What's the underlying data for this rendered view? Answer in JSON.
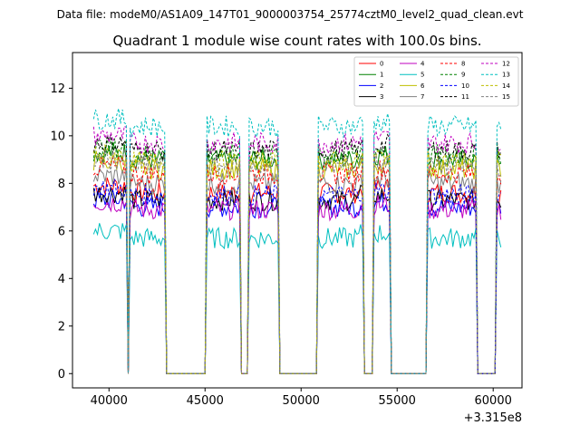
{
  "chart_data": {
    "type": "line",
    "suptitle": "Data file: modeM0/AS1A09_147T01_9000003754_25774cztM0_level2_quad_clean.evt",
    "title": "Quadrant 1 module wise count rates with 100.0s bins.",
    "xlabel": "",
    "ylabel": "",
    "x_offset_label": "+3.315e8",
    "xlim": [
      38100,
      61500
    ],
    "ylim": [
      -0.6,
      13.5
    ],
    "xticks": [
      40000,
      45000,
      50000,
      55000,
      60000
    ],
    "xtick_labels": [
      "40000",
      "45000",
      "50000",
      "55000",
      "60000"
    ],
    "yticks": [
      0,
      2,
      4,
      6,
      8,
      10,
      12
    ],
    "ytick_labels": [
      "0",
      "2",
      "4",
      "6",
      "8",
      "10",
      "12"
    ],
    "segments": [
      [
        39200,
        40900
      ],
      [
        41100,
        42900
      ],
      [
        45100,
        46800
      ],
      [
        47300,
        48800
      ],
      [
        50900,
        53200
      ],
      [
        53800,
        54600
      ],
      [
        56600,
        59100
      ],
      [
        60200,
        60400
      ]
    ],
    "legend_position": "upper right",
    "legend_ncol": 4,
    "series": [
      {
        "name": "0",
        "color": "#ff0000",
        "dash": "solid",
        "level": 7.6
      },
      {
        "name": "1",
        "color": "#008000",
        "dash": "solid",
        "level": 9.0
      },
      {
        "name": "2",
        "color": "#0000ff",
        "dash": "solid",
        "level": 7.0
      },
      {
        "name": "3",
        "color": "#000000",
        "dash": "solid",
        "level": 7.3
      },
      {
        "name": "4",
        "color": "#bf00bf",
        "dash": "solid",
        "level": 6.9
      },
      {
        "name": "5",
        "color": "#00bfbf",
        "dash": "solid",
        "level": 5.7
      },
      {
        "name": "6",
        "color": "#bfbf00",
        "dash": "solid",
        "level": 8.6
      },
      {
        "name": "7",
        "color": "#808080",
        "dash": "solid",
        "level": 8.0
      },
      {
        "name": "8",
        "color": "#ff0000",
        "dash": "dashed",
        "level": 8.4
      },
      {
        "name": "9",
        "color": "#008000",
        "dash": "dashed",
        "level": 9.2
      },
      {
        "name": "10",
        "color": "#0000ff",
        "dash": "dashed",
        "level": 7.5
      },
      {
        "name": "11",
        "color": "#000000",
        "dash": "dashed",
        "level": 9.4
      },
      {
        "name": "12",
        "color": "#bf00bf",
        "dash": "dashed",
        "level": 9.7
      },
      {
        "name": "13",
        "color": "#00bfbf",
        "dash": "dashed",
        "level": 10.4
      },
      {
        "name": "14",
        "color": "#bfbf00",
        "dash": "dashed",
        "level": 8.9
      },
      {
        "name": "15",
        "color": "#808080",
        "dash": "dashed",
        "level": 8.7
      }
    ]
  }
}
